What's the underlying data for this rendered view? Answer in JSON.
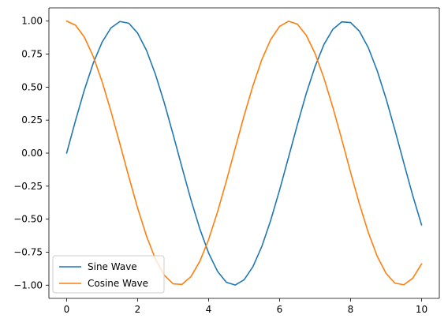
{
  "chart_data": {
    "type": "line",
    "title": "",
    "xlabel": "",
    "ylabel": "",
    "xlim": [
      -0.5,
      10.5
    ],
    "ylim": [
      -1.1,
      1.1
    ],
    "x_ticks": [
      0,
      2,
      4,
      6,
      8,
      10
    ],
    "x_tick_labels": [
      "0",
      "2",
      "4",
      "6",
      "8",
      "10"
    ],
    "y_ticks": [
      -1.0,
      -0.75,
      -0.5,
      -0.25,
      0.0,
      0.25,
      0.5,
      0.75,
      1.0
    ],
    "y_tick_labels": [
      "−1.00",
      "−0.75",
      "−0.50",
      "−0.25",
      "0.00",
      "0.25",
      "0.50",
      "0.75",
      "1.00"
    ],
    "grid": false,
    "legend_position": "lower-left",
    "series": [
      {
        "name": "Sine Wave",
        "color": "#1f77b4",
        "x": [
          0.0,
          0.25,
          0.5,
          0.75,
          1.0,
          1.25,
          1.5,
          1.75,
          2.0,
          2.25,
          2.5,
          2.75,
          3.0,
          3.25,
          3.5,
          3.75,
          4.0,
          4.25,
          4.5,
          4.75,
          5.0,
          5.25,
          5.5,
          5.75,
          6.0,
          6.25,
          6.5,
          6.75,
          7.0,
          7.25,
          7.5,
          7.75,
          8.0,
          8.25,
          8.5,
          8.75,
          9.0,
          9.25,
          9.5,
          9.75,
          10.0
        ],
        "y": [
          0.0,
          0.247,
          0.479,
          0.682,
          0.841,
          0.949,
          0.997,
          0.984,
          0.909,
          0.778,
          0.598,
          0.382,
          0.141,
          -0.108,
          -0.351,
          -0.572,
          -0.757,
          -0.895,
          -0.978,
          -0.999,
          -0.959,
          -0.859,
          -0.706,
          -0.508,
          -0.279,
          -0.033,
          0.215,
          0.451,
          0.657,
          0.823,
          0.938,
          0.994,
          0.989,
          0.923,
          0.798,
          0.624,
          0.412,
          0.174,
          -0.075,
          -0.32,
          -0.544
        ]
      },
      {
        "name": "Cosine Wave",
        "color": "#ff7f0e",
        "x": [
          0.0,
          0.25,
          0.5,
          0.75,
          1.0,
          1.25,
          1.5,
          1.75,
          2.0,
          2.25,
          2.5,
          2.75,
          3.0,
          3.25,
          3.5,
          3.75,
          4.0,
          4.25,
          4.5,
          4.75,
          5.0,
          5.25,
          5.5,
          5.75,
          6.0,
          6.25,
          6.5,
          6.75,
          7.0,
          7.25,
          7.5,
          7.75,
          8.0,
          8.25,
          8.5,
          8.75,
          9.0,
          9.25,
          9.5,
          9.75,
          10.0
        ],
        "y": [
          1.0,
          0.969,
          0.878,
          0.732,
          0.54,
          0.315,
          0.071,
          -0.178,
          -0.416,
          -0.628,
          -0.801,
          -0.924,
          -0.99,
          -0.994,
          -0.936,
          -0.821,
          -0.654,
          -0.446,
          -0.211,
          0.038,
          0.284,
          0.512,
          0.709,
          0.861,
          0.96,
          0.999,
          0.977,
          0.893,
          0.754,
          0.568,
          0.347,
          0.105,
          -0.146,
          -0.386,
          -0.602,
          -0.781,
          -0.911,
          -0.985,
          -0.997,
          -0.948,
          -0.839
        ]
      }
    ]
  }
}
